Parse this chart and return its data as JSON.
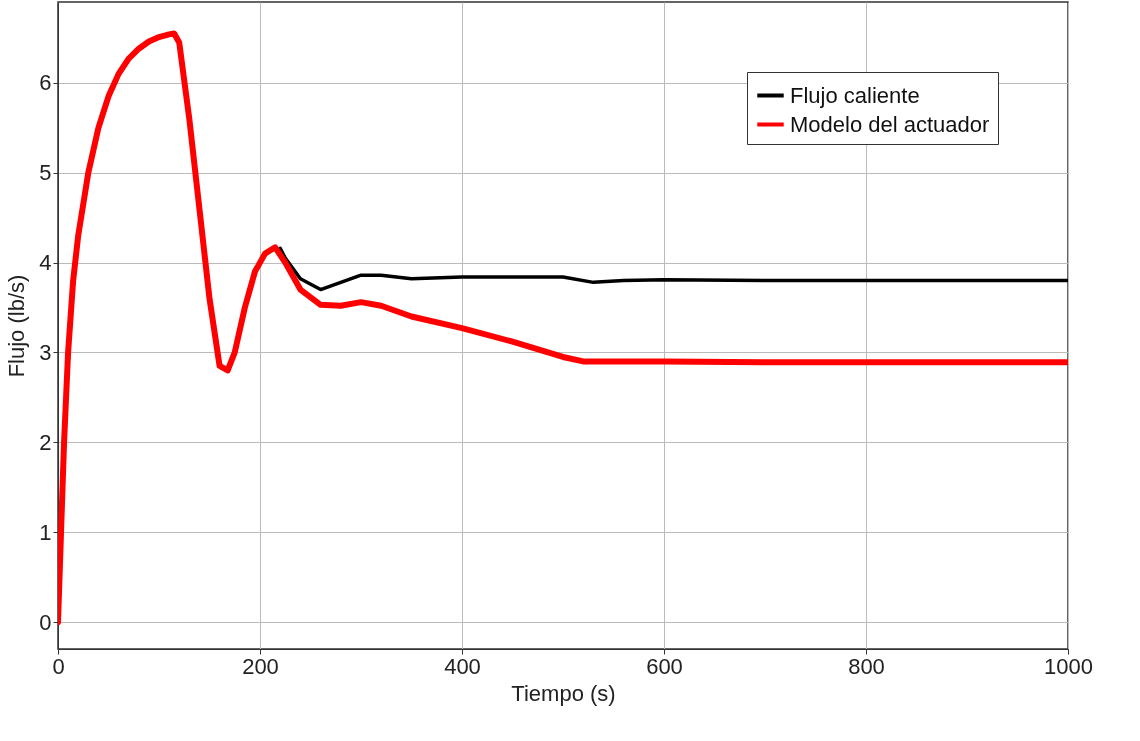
{
  "chart_data": {
    "type": "line",
    "xlabel": "Tiempo (s)",
    "ylabel": "Flujo (lb/s)",
    "xlim": [
      0,
      1000
    ],
    "ylim": [
      -0.3,
      6.9
    ],
    "xticks": [
      0,
      200,
      400,
      600,
      800,
      1000
    ],
    "yticks": [
      0,
      1,
      2,
      3,
      4,
      5,
      6
    ],
    "grid": true,
    "legend": "top right",
    "line_style": "solid",
    "marker": "none",
    "series": [
      {
        "name": "Flujo caliente",
        "color": "#000000",
        "x": [
          220,
          225,
          240,
          260,
          280,
          300,
          320,
          350,
          400,
          450,
          500,
          530,
          560,
          600,
          700,
          800,
          1000
        ],
        "values": [
          4.16,
          4.05,
          3.82,
          3.7,
          3.78,
          3.86,
          3.86,
          3.82,
          3.84,
          3.84,
          3.84,
          3.78,
          3.8,
          3.81,
          3.8,
          3.8,
          3.8
        ]
      },
      {
        "name": "Modelo del actuador",
        "color": "#ff0000",
        "x": [
          0,
          3,
          6,
          10,
          15,
          20,
          30,
          40,
          50,
          60,
          70,
          80,
          90,
          100,
          110,
          115,
          120,
          130,
          140,
          150,
          160,
          168,
          175,
          185,
          195,
          205,
          215,
          225,
          240,
          260,
          280,
          300,
          320,
          350,
          400,
          450,
          500,
          520,
          600,
          700,
          1000
        ],
        "values": [
          0,
          1,
          2,
          3,
          3.8,
          4.3,
          5.0,
          5.5,
          5.85,
          6.1,
          6.27,
          6.38,
          6.46,
          6.51,
          6.54,
          6.55,
          6.45,
          5.6,
          4.6,
          3.6,
          2.85,
          2.8,
          3.0,
          3.5,
          3.9,
          4.1,
          4.17,
          4.0,
          3.7,
          3.53,
          3.52,
          3.56,
          3.52,
          3.4,
          3.27,
          3.12,
          2.95,
          2.9,
          2.9,
          2.89,
          2.89
        ]
      }
    ]
  }
}
